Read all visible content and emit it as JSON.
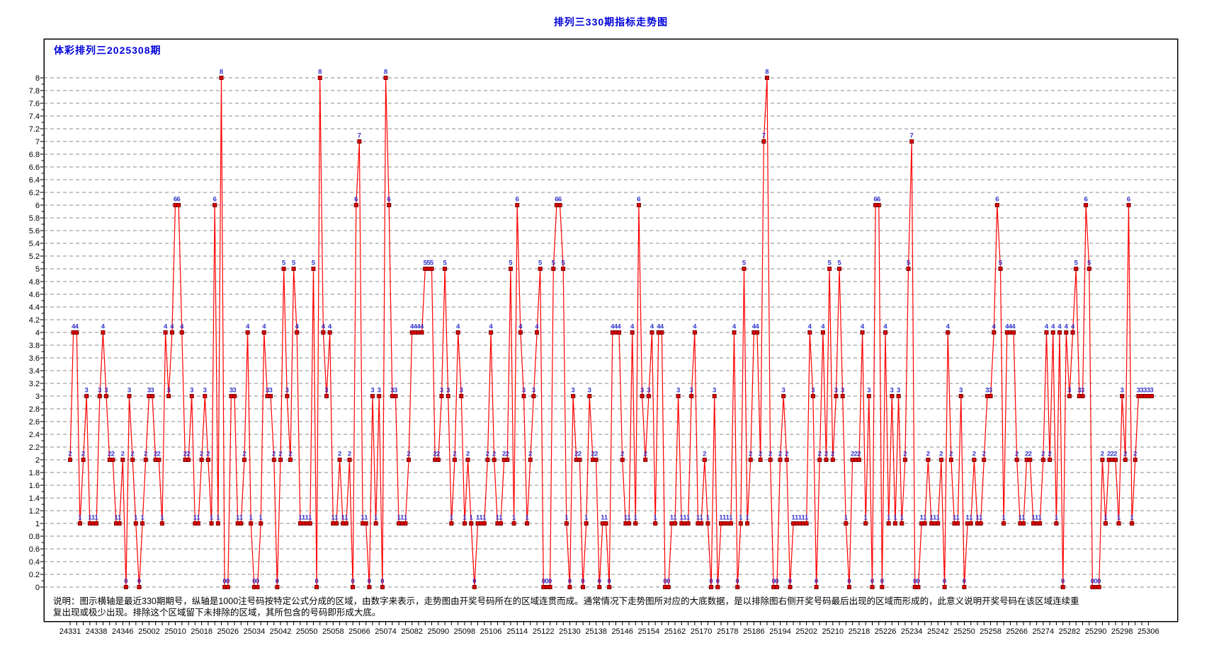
{
  "page_title": "排列三330期指标走势图",
  "chart_header": "体彩排列三2025308期",
  "footnote": {
    "line1": "说明：图示横轴是最近330期期号，纵轴是1000注号码按特定公式分成的区域，由数字来表示，走势图由开奖号码所在的区域连贯而成。通常情况下走势图所对应的大底数据，是以排除图右侧开奖号码最后出现的区域而形成的，此意义说明开奖号码在该区域连续重",
    "line2": "复出现或极少出现。排除这个区域留下未排除的区域，其所包含的号码即形成大底。"
  },
  "colors": {
    "title_blue": "#0000dd",
    "point_label_blue": "#3333cc",
    "line_red": "#ff0000",
    "marker_fill": "#e00000",
    "marker_stroke": "#7a0000",
    "grid_gray": "#8a8a8a",
    "axis_text": "#000000",
    "border": "#000000",
    "background": "#ffffff"
  },
  "chart_data": {
    "type": "line",
    "title": "体彩排列三2025308期",
    "grid": "horizontal-dashed",
    "legend": "none",
    "y_axis": {
      "min": 0,
      "max": 8,
      "tick_step": 0.2,
      "minor_tick_step": 0.1
    },
    "x_axis": {
      "total_points": 330,
      "label_every_n_points": 8,
      "tick_labels": [
        "24331",
        "24338",
        "24346",
        "25002",
        "25010",
        "25018",
        "25026",
        "25034",
        "25042",
        "25050",
        "25058",
        "25066",
        "25074",
        "25082",
        "25090",
        "25098",
        "25106",
        "25114",
        "25122",
        "25130",
        "25138",
        "25146",
        "25154",
        "25162",
        "25170",
        "25178",
        "25186",
        "25194",
        "25202",
        "25210",
        "25218",
        "25226",
        "25234",
        "25242",
        "25250",
        "25258",
        "25266",
        "25274",
        "25282",
        "25290",
        "25298",
        "25306"
      ]
    },
    "values": [
      2,
      4,
      4,
      1,
      2,
      3,
      1,
      1,
      1,
      3,
      4,
      3,
      2,
      2,
      1,
      1,
      2,
      0,
      3,
      2,
      1,
      0,
      1,
      2,
      3,
      3,
      2,
      2,
      1,
      4,
      3,
      4,
      6,
      6,
      4,
      2,
      2,
      3,
      1,
      1,
      2,
      3,
      2,
      1,
      6,
      1,
      8,
      0,
      0,
      3,
      3,
      1,
      1,
      2,
      4,
      1,
      0,
      0,
      1,
      4,
      3,
      3,
      2,
      0,
      2,
      5,
      3,
      2,
      5,
      4,
      1,
      1,
      1,
      1,
      5,
      0,
      8,
      4,
      3,
      4,
      1,
      1,
      2,
      1,
      1,
      2,
      0,
      6,
      7,
      1,
      1,
      0,
      3,
      1,
      3,
      0,
      8,
      6,
      3,
      3,
      1,
      1,
      1,
      2,
      4,
      4,
      4,
      4,
      5,
      5,
      5,
      2,
      2,
      3,
      5,
      3,
      1,
      2,
      4,
      3,
      1,
      2,
      1,
      0,
      1,
      1,
      1,
      2,
      4,
      2,
      1,
      1,
      2,
      2,
      5,
      1,
      6,
      4,
      3,
      1,
      2,
      3,
      4,
      5,
      0,
      0,
      0,
      5,
      6,
      6,
      5,
      1,
      0,
      3,
      2,
      2,
      0,
      1,
      3,
      2,
      2,
      0,
      1,
      1,
      0,
      4,
      4,
      4,
      2,
      1,
      1,
      4,
      1,
      6,
      3,
      2,
      3,
      4,
      1,
      4,
      4,
      0,
      0,
      1,
      1,
      3,
      1,
      1,
      1,
      3,
      4,
      1,
      1,
      2,
      1,
      0,
      3,
      0,
      1,
      1,
      1,
      1,
      4,
      0,
      1,
      5,
      1,
      2,
      4,
      4,
      2,
      7,
      8,
      2,
      0,
      0,
      2,
      3,
      2,
      0,
      1,
      1,
      1,
      1,
      1,
      4,
      3,
      0,
      2,
      4,
      2,
      5,
      2,
      3,
      5,
      3,
      1,
      0,
      2,
      2,
      2,
      4,
      1,
      3,
      0,
      6,
      6,
      0,
      4,
      1,
      3,
      1,
      3,
      1,
      2,
      5,
      7,
      0,
      0,
      1,
      1,
      2,
      1,
      1,
      1,
      2,
      0,
      4,
      2,
      1,
      1,
      3,
      0,
      1,
      1,
      2,
      1,
      1,
      2,
      3,
      3,
      4,
      6,
      5,
      1,
      4,
      4,
      4,
      2,
      1,
      1,
      2,
      2,
      1,
      1,
      1,
      2,
      4,
      2,
      4,
      1,
      4,
      0,
      4,
      3,
      4,
      5,
      3,
      3,
      6,
      5,
      0,
      0,
      0,
      2,
      1,
      2,
      2,
      2,
      1,
      3,
      2,
      6,
      1,
      2,
      3,
      3,
      3,
      3,
      3
    ]
  }
}
